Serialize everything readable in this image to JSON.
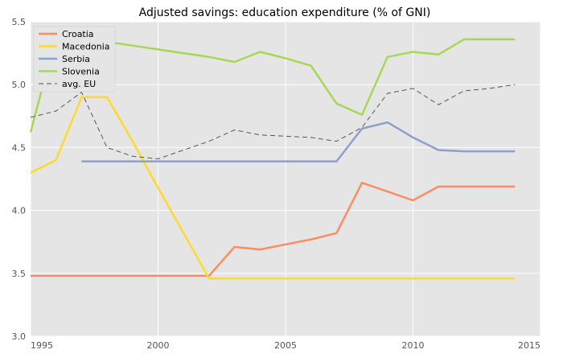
{
  "chart_data": {
    "type": "line",
    "title": "Adjusted savings: education expenditure (% of GNI)",
    "xlabel": "",
    "ylabel": "",
    "xlim": [
      1995,
      2015
    ],
    "ylim": [
      3.0,
      5.5
    ],
    "xticks": [
      1995,
      2000,
      2005,
      2010,
      2015
    ],
    "xtick_labels": [
      "1995",
      "2000",
      "2005",
      "2010",
      "2015"
    ],
    "yticks": [
      3.0,
      3.5,
      4.0,
      4.5,
      5.0,
      5.5
    ],
    "ytick_labels": [
      "3.0",
      "3.5",
      "4.0",
      "4.5",
      "5.0",
      "5.5"
    ],
    "grid": true,
    "legend_position": "top-left",
    "series": [
      {
        "name": "Croatia",
        "color": "#fc8d62",
        "dash": "solid",
        "x": [
          1995,
          1996,
          1997,
          1998,
          1999,
          2000,
          2001,
          2002,
          2003,
          2004,
          2005,
          2006,
          2007,
          2008,
          2009,
          2010,
          2011,
          2012,
          2013,
          2014
        ],
        "y": [
          3.48,
          3.48,
          3.48,
          3.48,
          3.48,
          3.48,
          3.48,
          3.48,
          3.71,
          3.69,
          3.73,
          3.77,
          3.82,
          4.22,
          4.15,
          4.08,
          4.19,
          4.19,
          4.19,
          4.19
        ]
      },
      {
        "name": "Macedonia",
        "color": "#ffd92f",
        "dash": "solid",
        "x": [
          1995,
          1996,
          1997,
          1998,
          1999,
          2000,
          2001,
          2002,
          2003,
          2004,
          2005,
          2006,
          2007,
          2008,
          2009,
          2010,
          2011,
          2012,
          2013,
          2014
        ],
        "y": [
          4.3,
          4.4,
          4.9,
          4.9,
          4.55,
          4.18,
          3.82,
          3.46,
          3.46,
          3.46,
          3.46,
          3.46,
          3.46,
          3.46,
          3.46,
          3.46,
          3.46,
          3.46,
          3.46,
          3.46
        ]
      },
      {
        "name": "Serbia",
        "color": "#8da0cb",
        "dash": "solid",
        "x": [
          1997,
          1998,
          1999,
          2000,
          2001,
          2002,
          2003,
          2004,
          2005,
          2006,
          2007,
          2008,
          2009,
          2010,
          2011,
          2012,
          2013,
          2014
        ],
        "y": [
          4.39,
          4.39,
          4.39,
          4.39,
          4.39,
          4.39,
          4.39,
          4.39,
          4.39,
          4.39,
          4.39,
          4.65,
          4.7,
          4.58,
          4.48,
          4.47,
          4.47,
          4.47
        ]
      },
      {
        "name": "Slovenia",
        "color": "#a6d854",
        "dash": "solid",
        "x": [
          1995,
          1996,
          1997,
          1998,
          1999,
          2000,
          2001,
          2002,
          2003,
          2004,
          2005,
          2006,
          2007,
          2008,
          2009,
          2010,
          2011,
          2012,
          2013,
          2014
        ],
        "y": [
          4.62,
          5.39,
          5.37,
          5.34,
          5.31,
          5.28,
          5.25,
          5.22,
          5.18,
          5.26,
          5.21,
          5.15,
          4.85,
          4.76,
          5.22,
          5.26,
          5.24,
          5.36,
          5.36,
          5.36
        ]
      },
      {
        "name": "avg. EU",
        "color": "#555555",
        "dash": "dashed",
        "x": [
          1995,
          1996,
          1997,
          1998,
          1999,
          2000,
          2001,
          2002,
          2003,
          2004,
          2005,
          2006,
          2007,
          2008,
          2009,
          2010,
          2011,
          2012,
          2013,
          2014
        ],
        "y": [
          4.74,
          4.79,
          4.94,
          4.5,
          4.43,
          4.41,
          4.48,
          4.55,
          4.64,
          4.6,
          4.59,
          4.58,
          4.55,
          4.66,
          4.93,
          4.97,
          4.84,
          4.95,
          4.97,
          5.0
        ]
      }
    ]
  }
}
